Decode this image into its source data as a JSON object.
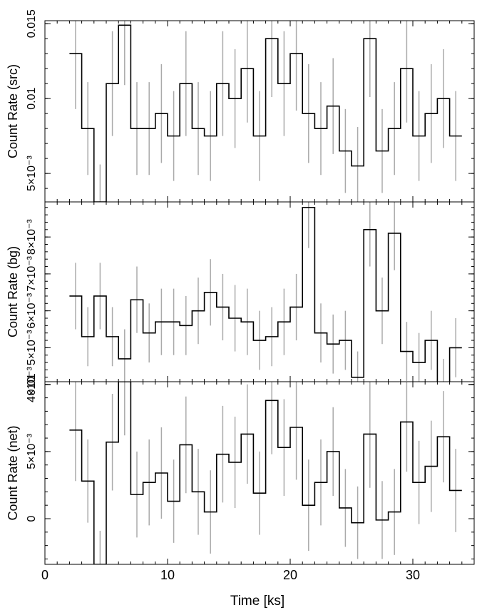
{
  "chart_data": [
    {
      "id": "src",
      "type": "line",
      "style": "histogram-step",
      "ylabel": "Count Rate (src)",
      "ylim": [
        0.0031,
        0.0152
      ],
      "yticks": [
        {
          "value": 0.005,
          "label": "5×10⁻³"
        },
        {
          "value": 0.01,
          "label": "0.01"
        },
        {
          "value": 0.015,
          "label": "0.015"
        }
      ],
      "x": [
        2.5,
        3.5,
        4.5,
        5.5,
        6.5,
        7.5,
        8.5,
        9.5,
        10.5,
        11.5,
        12.5,
        13.5,
        14.5,
        15.5,
        16.5,
        17.5,
        18.5,
        19.5,
        20.5,
        21.5,
        22.5,
        23.5,
        24.5,
        25.5,
        26.5,
        27.5,
        28.5,
        29.5,
        30.5,
        31.5,
        32.5,
        33.5
      ],
      "values": [
        0.013,
        0.008,
        0.0031,
        0.011,
        0.0149,
        0.008,
        0.008,
        0.009,
        0.0075,
        0.011,
        0.008,
        0.0075,
        0.011,
        0.01,
        0.012,
        0.0075,
        0.014,
        0.011,
        0.013,
        0.009,
        0.008,
        0.0095,
        0.0065,
        0.0055,
        0.014,
        0.0065,
        0.008,
        0.012,
        0.0075,
        0.009,
        0.01,
        0.0075
      ],
      "errors": [
        0.0037,
        0.0031,
        0.0025,
        0.0035,
        0.004,
        0.0031,
        0.0031,
        0.0033,
        0.003,
        0.0035,
        0.0031,
        0.003,
        0.0035,
        0.0033,
        0.0036,
        0.003,
        0.0039,
        0.0035,
        0.0038,
        0.0033,
        0.0031,
        0.0032,
        0.0028,
        0.0026,
        0.0039,
        0.0028,
        0.0031,
        0.0036,
        0.003,
        0.0033,
        0.0033,
        0.003
      ]
    },
    {
      "id": "bg",
      "type": "line",
      "style": "histogram-step",
      "ylabel": "Count Rate (bg)",
      "ylim": [
        0.00408,
        0.00895
      ],
      "yticks": [
        {
          "value": 0.004,
          "label": "4×10⁻³"
        },
        {
          "value": 0.005,
          "label": "5×10⁻³"
        },
        {
          "value": 0.006,
          "label": "6×10⁻³"
        },
        {
          "value": 0.007,
          "label": "7×10⁻³"
        },
        {
          "value": 0.008,
          "label": "8×10⁻³"
        }
      ],
      "x": [
        2.5,
        3.5,
        4.5,
        5.5,
        6.5,
        7.5,
        8.5,
        9.5,
        10.5,
        11.5,
        12.5,
        13.5,
        14.5,
        15.5,
        16.5,
        17.5,
        18.5,
        19.5,
        20.5,
        21.5,
        22.5,
        23.5,
        24.5,
        25.5,
        26.5,
        27.5,
        28.5,
        29.5,
        30.5,
        31.5,
        32.5,
        33.5
      ],
      "values": [
        0.0064,
        0.0053,
        0.0064,
        0.0053,
        0.0047,
        0.0063,
        0.0054,
        0.0057,
        0.0057,
        0.0056,
        0.006,
        0.0065,
        0.0061,
        0.0058,
        0.0057,
        0.0052,
        0.0053,
        0.0057,
        0.0061,
        0.0088,
        0.0054,
        0.0051,
        0.0052,
        0.0042,
        0.0082,
        0.006,
        0.0081,
        0.0049,
        0.0046,
        0.0052,
        0.004,
        0.005
      ],
      "errors": [
        0.0009,
        0.0008,
        0.0009,
        0.0008,
        0.0008,
        0.0009,
        0.0008,
        0.0009,
        0.0009,
        0.0008,
        0.0009,
        0.0009,
        0.0009,
        0.0009,
        0.0009,
        0.0008,
        0.0008,
        0.0009,
        0.0009,
        0.0011,
        0.0008,
        0.0008,
        0.0008,
        0.0007,
        0.001,
        0.0009,
        0.001,
        0.0008,
        0.0008,
        0.0008,
        0.0007,
        0.0008
      ]
    },
    {
      "id": "net",
      "type": "line",
      "style": "histogram-step",
      "ylabel": "Count Rate (net)",
      "xlabel": "Time [ks]",
      "ylim": [
        -0.0034,
        0.0102
      ],
      "yticks": [
        {
          "value": 0,
          "label": "0"
        },
        {
          "value": 0.005,
          "label": "5×10⁻³"
        },
        {
          "value": 0.01,
          "label": "0.01"
        }
      ],
      "xlim": [
        0,
        35
      ],
      "xticks": [
        0,
        10,
        20,
        30
      ],
      "x": [
        2.5,
        3.5,
        4.5,
        5.5,
        6.5,
        7.5,
        8.5,
        9.5,
        10.5,
        11.5,
        12.5,
        13.5,
        14.5,
        15.5,
        16.5,
        17.5,
        18.5,
        19.5,
        20.5,
        21.5,
        22.5,
        23.5,
        24.5,
        25.5,
        26.5,
        27.5,
        28.5,
        29.5,
        30.5,
        31.5,
        32.5,
        33.5
      ],
      "values": [
        0.0066,
        0.0028,
        -0.0034,
        0.0057,
        0.0102,
        0.0018,
        0.0027,
        0.0034,
        0.0013,
        0.0055,
        0.002,
        0.0005,
        0.0048,
        0.0042,
        0.0063,
        0.0019,
        0.0088,
        0.0053,
        0.0068,
        0.001,
        0.0027,
        0.005,
        0.0008,
        -0.0003,
        0.0063,
        -0.0001,
        0.0005,
        0.0072,
        0.0027,
        0.0039,
        0.0061,
        0.0021
      ],
      "errors": [
        0.0038,
        0.0031,
        0.0025,
        0.0036,
        0.004,
        0.0032,
        0.0032,
        0.0034,
        0.0031,
        0.0036,
        0.0032,
        0.0031,
        0.0036,
        0.0034,
        0.0037,
        0.0031,
        0.004,
        0.0036,
        0.0039,
        0.0034,
        0.0032,
        0.0033,
        0.0029,
        0.0027,
        0.004,
        0.0029,
        0.0032,
        0.0037,
        0.0031,
        0.0034,
        0.0034,
        0.0031
      ]
    }
  ],
  "colors": {
    "step_line": "#000000",
    "error_bar": "#aaaaaa",
    "frame": "#000000"
  }
}
